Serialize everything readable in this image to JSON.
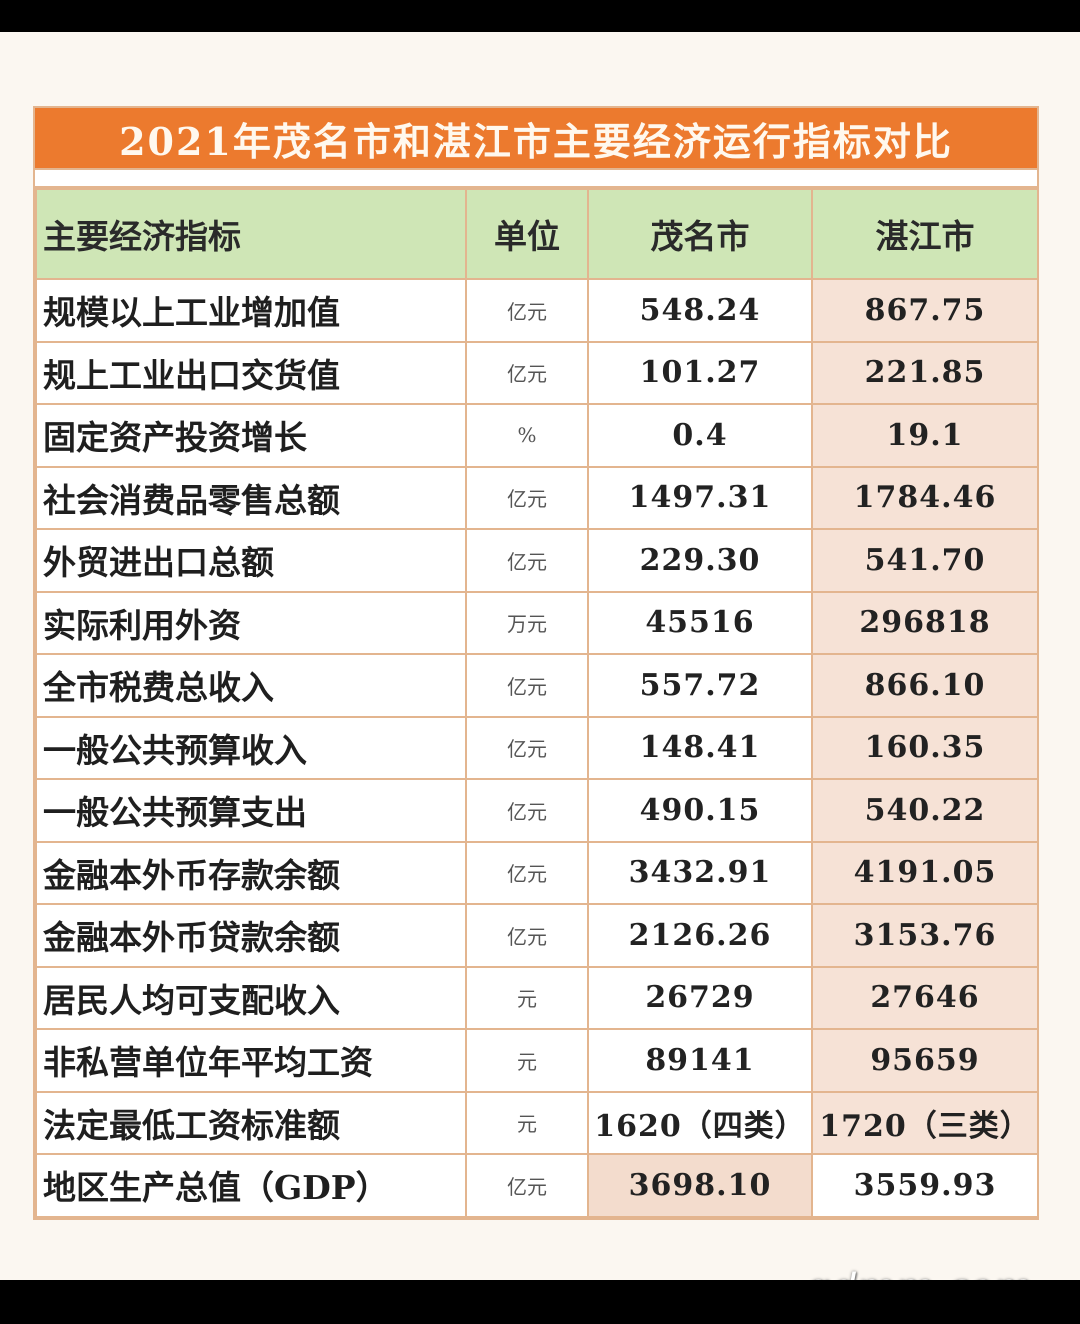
{
  "title": "2021年茂名市和湛江市主要经济运行指标对比",
  "headers": [
    "主要经济指标",
    "单位",
    "茂名市",
    "湛江市"
  ],
  "rows": [
    {
      "name": "规模以上工业增加值",
      "unit": "亿元",
      "maoming": "548.24",
      "zhanjiang": "867.75"
    },
    {
      "name": "规上工业出口交货值",
      "unit": "亿元",
      "maoming": "101.27",
      "zhanjiang": "221.85"
    },
    {
      "name": "固定资产投资增长",
      "unit": "%",
      "maoming": "0.4",
      "zhanjiang": "19.1"
    },
    {
      "name": "社会消费品零售总额",
      "unit": "亿元",
      "maoming": "1497.31",
      "zhanjiang": "1784.46"
    },
    {
      "name": "外贸进出口总额",
      "unit": "亿元",
      "maoming": "229.30",
      "zhanjiang": "541.70"
    },
    {
      "name": "实际利用外资",
      "unit": "万元",
      "maoming": "45516",
      "zhanjiang": "296818"
    },
    {
      "name": "全市税费总收入",
      "unit": "亿元",
      "maoming": "557.72",
      "zhanjiang": "866.10"
    },
    {
      "name": "一般公共预算收入",
      "unit": "亿元",
      "maoming": "148.41",
      "zhanjiang": "160.35"
    },
    {
      "name": "一般公共预算支出",
      "unit": "亿元",
      "maoming": "490.15",
      "zhanjiang": "540.22"
    },
    {
      "name": "金融本外币存款余额",
      "unit": "亿元",
      "maoming": "3432.91",
      "zhanjiang": "4191.05"
    },
    {
      "name": "金融本外币贷款余额",
      "unit": "亿元",
      "maoming": "2126.26",
      "zhanjiang": "3153.76"
    },
    {
      "name": "居民人均可支配收入",
      "unit": "元",
      "maoming": "26729",
      "zhanjiang": "27646"
    },
    {
      "name": "非私营单位年平均工资",
      "unit": "元",
      "maoming": "89141",
      "zhanjiang": "95659"
    },
    {
      "name": "法定最低工资标准额",
      "unit": "元",
      "maoming": "1620（四类）",
      "zhanjiang": "1720（三类）"
    },
    {
      "name": "地区生产总值（GDP）",
      "unit": "亿元",
      "maoming": "3698.10",
      "zhanjiang": "3559.93"
    }
  ],
  "watermark": "gdmm.com",
  "colors": {
    "title_bg": "#ec7a2e",
    "header_bg": "#cfe6b6",
    "highlight": "#f3dccd",
    "border": "#e3b58f"
  }
}
